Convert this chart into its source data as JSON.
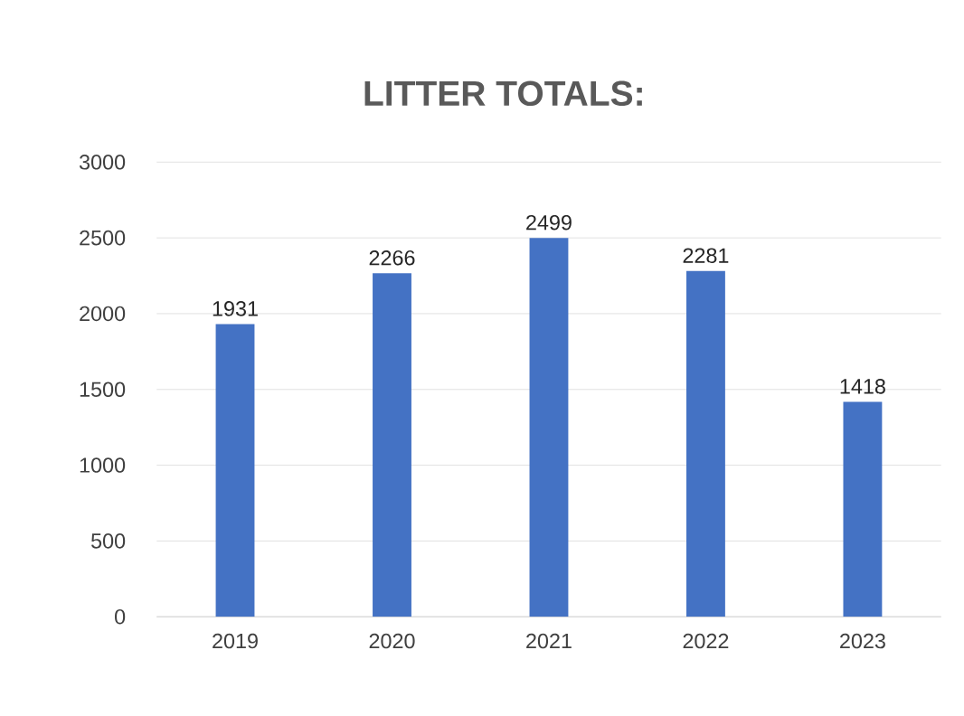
{
  "chart_data": {
    "type": "bar",
    "title": "LITTER TOTALS:",
    "categories": [
      "2019",
      "2020",
      "2021",
      "2022",
      "2023"
    ],
    "values": [
      1931,
      2266,
      2499,
      2281,
      1418
    ],
    "color": "#4472c4",
    "ylim": [
      0,
      3000
    ],
    "yticks": [
      0,
      500,
      1000,
      1500,
      2000,
      2500,
      3000
    ],
    "grid": "y",
    "data_labels": true
  }
}
